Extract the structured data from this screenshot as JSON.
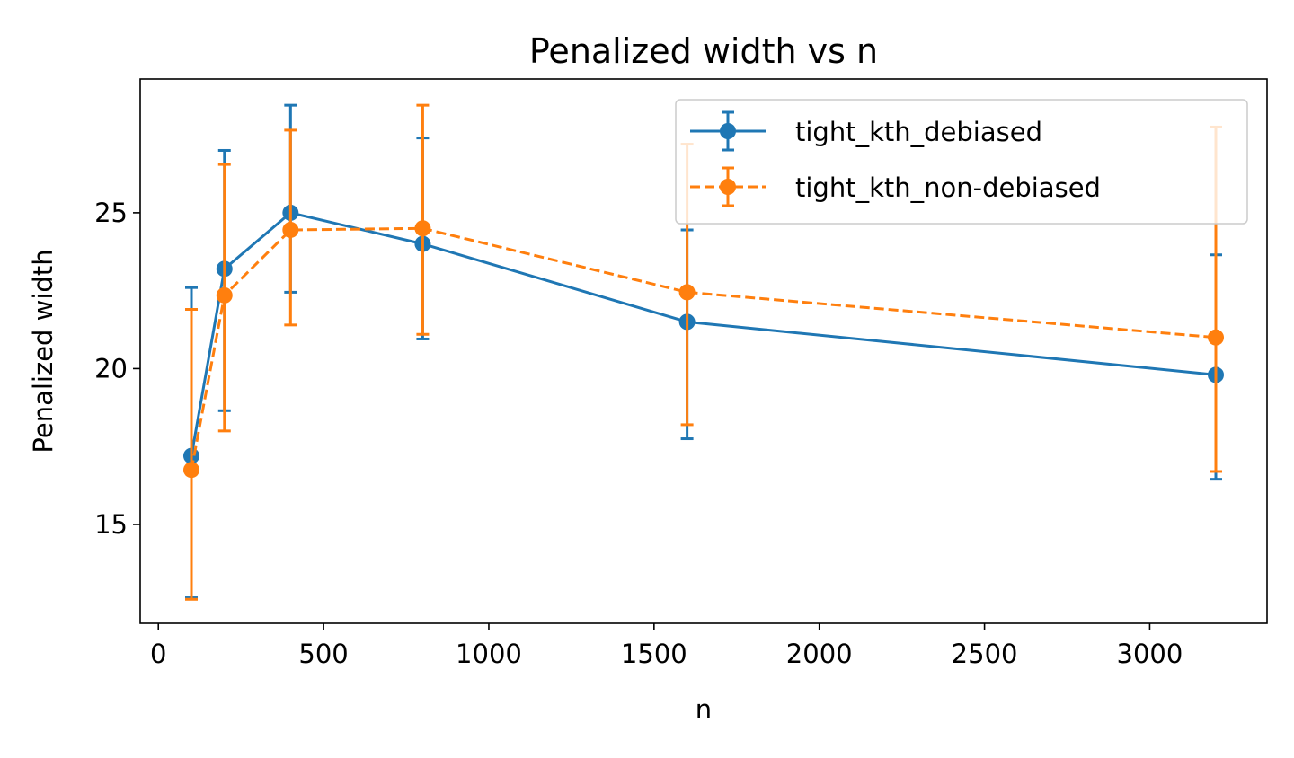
{
  "chart_data": {
    "type": "line",
    "title": "Penalized width vs n",
    "xlabel": "n",
    "ylabel": "Penalized width",
    "xlim": [
      -55,
      3355
    ],
    "ylim": [
      11.83,
      29.29
    ],
    "xticks": [
      0,
      500,
      1000,
      1500,
      2000,
      2500,
      3000
    ],
    "yticks": [
      15,
      20,
      25
    ],
    "grid": false,
    "legend_position": "top-right",
    "x": [
      100,
      200,
      400,
      800,
      1600,
      3200
    ],
    "series": [
      {
        "name": "tight_kth_debiased",
        "color": "#1f77b4",
        "linestyle": "solid",
        "marker": "circle",
        "values": [
          17.2,
          23.2,
          25.0,
          24.0,
          21.5,
          19.8
        ],
        "err_low": [
          12.65,
          18.65,
          22.45,
          20.95,
          17.75,
          16.45
        ],
        "err_high": [
          22.6,
          27.0,
          28.45,
          27.4,
          24.45,
          23.65
        ]
      },
      {
        "name": "tight_kth_non-debiased",
        "color": "#ff7f0e",
        "linestyle": "dashed",
        "marker": "circle",
        "values": [
          16.75,
          22.35,
          24.45,
          24.5,
          22.45,
          21.0
        ],
        "err_low": [
          12.6,
          18.0,
          21.4,
          21.1,
          18.2,
          16.7
        ],
        "err_high": [
          21.9,
          26.55,
          27.65,
          28.45,
          27.2,
          27.75
        ]
      }
    ]
  }
}
